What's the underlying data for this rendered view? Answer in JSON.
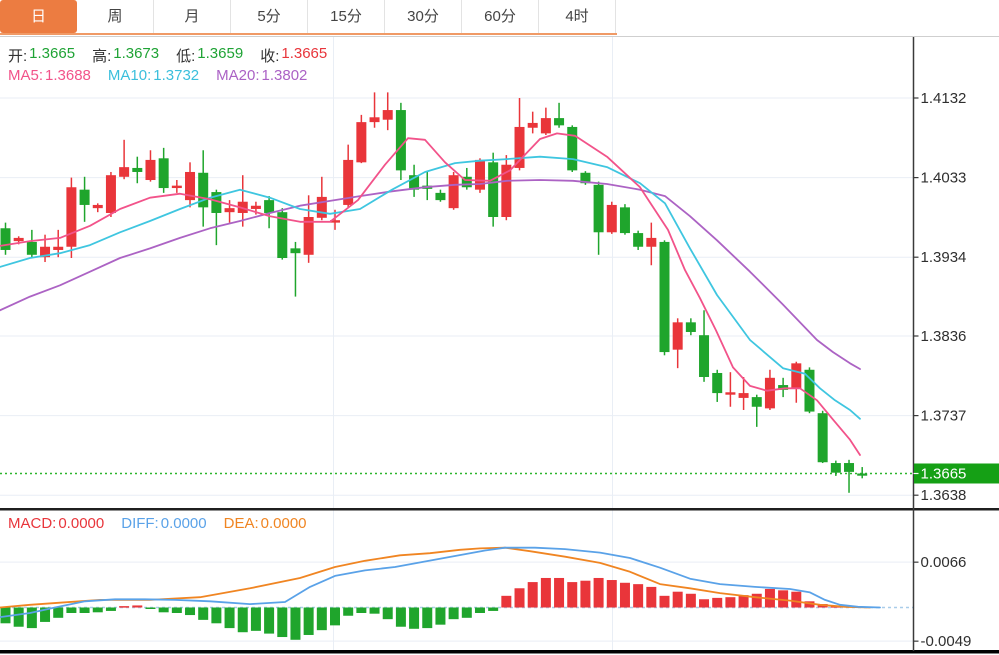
{
  "tabs": {
    "items": [
      {
        "label": "日",
        "active": true
      },
      {
        "label": "周",
        "active": false
      },
      {
        "label": "月",
        "active": false
      },
      {
        "label": "5分",
        "active": false
      },
      {
        "label": "15分",
        "active": false
      },
      {
        "label": "30分",
        "active": false
      },
      {
        "label": "60分",
        "active": false
      },
      {
        "label": "4时",
        "active": false
      }
    ]
  },
  "ohlc_row": {
    "items": [
      {
        "label": "开:",
        "value": "1.3665",
        "color": "green"
      },
      {
        "label": "高:",
        "value": "1.3673",
        "color": "green"
      },
      {
        "label": "低:",
        "value": "1.3659",
        "color": "green"
      },
      {
        "label": "收:",
        "value": "1.3665",
        "color": "red"
      }
    ]
  },
  "ma_row": {
    "items": [
      {
        "label": "MA5:",
        "value": "1.3688",
        "color": "ma5"
      },
      {
        "label": "MA10:",
        "value": "1.3732",
        "color": "ma10"
      },
      {
        "label": "MA20:",
        "value": "1.3802",
        "color": "ma20"
      }
    ]
  },
  "macd_row": {
    "items": [
      {
        "label": "MACD:",
        "value": "0.0000",
        "color": "red"
      },
      {
        "label": "DIFF:",
        "value": "0.0000",
        "color": "diff"
      },
      {
        "label": "DEA:",
        "value": "0.0000",
        "color": "dea"
      }
    ]
  },
  "colors": {
    "up": "#e9353a",
    "down": "#1fa52c",
    "ma5": "#f2538a",
    "ma10": "#3fc6e0",
    "ma20": "#ac63c4",
    "diff": "#5aa2e8",
    "dea": "#f08522",
    "tab_accent": "#ec7c41",
    "current_price_box": "#15a015",
    "grid": "#e9eef5",
    "axis": "#3a3a3a",
    "zero_dash": "#a9cde9",
    "current_price_line": "#2cb52c"
  },
  "chart_data": {
    "type": "candlestick+macd",
    "title": "",
    "price_axis": {
      "tick_labels": [
        "1.4132",
        "1.4033",
        "1.3934",
        "1.3836",
        "1.3737",
        "1.3638"
      ],
      "ticks": [
        1.4132,
        1.4033,
        1.3934,
        1.3836,
        1.3737,
        1.3638
      ],
      "current_label": "1.3665",
      "current_price": 1.3665
    },
    "macd_axis": {
      "tick_labels": [
        "0.0066",
        "-0.0049"
      ],
      "ticks": [
        0.0066,
        -0.0049
      ]
    },
    "candles": [
      [
        1.397,
        1.3977,
        1.3937,
        1.3943
      ],
      [
        1.3954,
        1.396,
        1.395,
        1.3958
      ],
      [
        1.3953,
        1.3968,
        1.3933,
        1.3937
      ],
      [
        1.3934,
        1.3962,
        1.3928,
        1.3947
      ],
      [
        1.3943,
        1.3968,
        1.3934,
        1.3947
      ],
      [
        1.3947,
        1.4033,
        1.3933,
        1.4021
      ],
      [
        1.4018,
        1.4034,
        1.3978,
        1.3999
      ],
      [
        1.3995,
        1.4001,
        1.399,
        1.3999
      ],
      [
        1.3989,
        1.404,
        1.3984,
        1.4036
      ],
      [
        1.4034,
        1.408,
        1.4031,
        1.4046
      ],
      [
        1.4045,
        1.4059,
        1.4026,
        1.404
      ],
      [
        1.403,
        1.4067,
        1.4028,
        1.4055
      ],
      [
        1.4057,
        1.407,
        1.4014,
        1.402
      ],
      [
        1.402,
        1.403,
        1.4014,
        1.4023
      ],
      [
        1.4005,
        1.4052,
        1.3996,
        1.404
      ],
      [
        1.4039,
        1.4067,
        1.3972,
        1.3996
      ],
      [
        1.4015,
        1.4018,
        1.3949,
        1.3989
      ],
      [
        1.399,
        1.4005,
        1.3977,
        1.3995
      ],
      [
        1.3989,
        1.4036,
        1.3972,
        1.4003
      ],
      [
        1.3994,
        1.4003,
        1.3987,
        1.3998
      ],
      [
        1.4005,
        1.401,
        1.397,
        1.3989
      ],
      [
        1.399,
        1.3995,
        1.3931,
        1.3933
      ],
      [
        1.3945,
        1.3953,
        1.3885,
        1.3939
      ],
      [
        1.3937,
        1.4011,
        1.3927,
        1.3984
      ],
      [
        1.3983,
        1.4034,
        1.398,
        1.4009
      ],
      [
        1.3977,
        1.3993,
        1.3968,
        1.398
      ],
      [
        1.3999,
        1.4074,
        1.3996,
        1.4055
      ],
      [
        1.4052,
        1.4111,
        1.4051,
        1.4102
      ],
      [
        1.4102,
        1.4139,
        1.4095,
        1.4108
      ],
      [
        1.4105,
        1.4139,
        1.4092,
        1.4117
      ],
      [
        1.4117,
        1.4126,
        1.403,
        1.4042
      ],
      [
        1.4036,
        1.4049,
        1.4009,
        1.4018
      ],
      [
        1.4023,
        1.404,
        1.4005,
        1.4019
      ],
      [
        1.4014,
        1.4018,
        1.4003,
        1.4005
      ],
      [
        1.3995,
        1.404,
        1.3993,
        1.4036
      ],
      [
        1.4034,
        1.4045,
        1.4018,
        1.4021
      ],
      [
        1.4018,
        1.4057,
        1.4014,
        1.4055
      ],
      [
        1.4052,
        1.4064,
        1.3972,
        1.3984
      ],
      [
        1.3984,
        1.4061,
        1.398,
        1.4049
      ],
      [
        1.4045,
        1.4132,
        1.4042,
        1.4096
      ],
      [
        1.4095,
        1.4115,
        1.4088,
        1.4101
      ],
      [
        1.4088,
        1.412,
        1.4086,
        1.4107
      ],
      [
        1.4107,
        1.4126,
        1.4095,
        1.4098
      ],
      [
        1.4096,
        1.4098,
        1.404,
        1.4042
      ],
      [
        1.4039,
        1.4041,
        1.4024,
        1.4026
      ],
      [
        1.4024,
        1.4028,
        1.3937,
        1.3965
      ],
      [
        1.3965,
        1.4003,
        1.3963,
        1.3999
      ],
      [
        1.3996,
        1.4,
        1.3962,
        1.3964
      ],
      [
        1.3964,
        1.3967,
        1.3943,
        1.3947
      ],
      [
        1.3947,
        1.3977,
        1.3924,
        1.3958
      ],
      [
        1.3953,
        1.3955,
        1.3812,
        1.3816
      ],
      [
        1.3819,
        1.3858,
        1.3796,
        1.3853
      ],
      [
        1.3853,
        1.3858,
        1.3837,
        1.3841
      ],
      [
        1.3837,
        1.3868,
        1.3779,
        1.3785
      ],
      [
        1.379,
        1.3794,
        1.3754,
        1.3765
      ],
      [
        1.3763,
        1.3791,
        1.3748,
        1.3766
      ],
      [
        1.3759,
        1.3785,
        1.3744,
        1.3765
      ],
      [
        1.376,
        1.3763,
        1.3723,
        1.3748
      ],
      [
        1.3746,
        1.3794,
        1.3744,
        1.3784
      ],
      [
        1.3775,
        1.3784,
        1.376,
        1.3769
      ],
      [
        1.3771,
        1.3804,
        1.3753,
        1.3802
      ],
      [
        1.3794,
        1.3797,
        1.374,
        1.3742
      ],
      [
        1.374,
        1.3743,
        1.3678,
        1.3679
      ],
      [
        1.3678,
        1.3681,
        1.3662,
        1.3666
      ],
      [
        1.3678,
        1.3682,
        1.3641,
        1.3667
      ],
      [
        1.3665,
        1.3673,
        1.3659,
        1.3665
      ]
    ],
    "ma5": [
      [
        0,
        1.3948
      ],
      [
        30,
        1.3954
      ],
      [
        60,
        1.3958
      ],
      [
        90,
        1.3973
      ],
      [
        120,
        1.3994
      ],
      [
        150,
        1.4008
      ],
      [
        180,
        1.4013
      ],
      [
        210,
        1.4006
      ],
      [
        240,
        1.3996
      ],
      [
        270,
        1.3985
      ],
      [
        300,
        1.3978
      ],
      [
        330,
        1.3978
      ],
      [
        358,
        1.4005
      ],
      [
        385,
        1.4049
      ],
      [
        408,
        1.4082
      ],
      [
        425,
        1.408
      ],
      [
        445,
        1.4052
      ],
      [
        465,
        1.403
      ],
      [
        490,
        1.4029
      ],
      [
        510,
        1.4042
      ],
      [
        540,
        1.4081
      ],
      [
        557,
        1.4088
      ],
      [
        575,
        1.4085
      ],
      [
        607,
        1.4059
      ],
      [
        640,
        1.4021
      ],
      [
        668,
        1.3968
      ],
      [
        685,
        1.3918
      ],
      [
        700,
        1.3883
      ],
      [
        716,
        1.3843
      ],
      [
        733,
        1.3797
      ],
      [
        750,
        1.3774
      ],
      [
        767,
        1.3768
      ],
      [
        785,
        1.3771
      ],
      [
        800,
        1.3771
      ],
      [
        817,
        1.3756
      ],
      [
        833,
        1.3732
      ],
      [
        850,
        1.3707
      ],
      [
        860,
        1.3688
      ]
    ],
    "ma10": [
      [
        0,
        1.3922
      ],
      [
        30,
        1.3933
      ],
      [
        60,
        1.3939
      ],
      [
        90,
        1.3949
      ],
      [
        120,
        1.3965
      ],
      [
        150,
        1.3979
      ],
      [
        180,
        1.3994
      ],
      [
        210,
        1.4008
      ],
      [
        240,
        1.4018
      ],
      [
        270,
        1.4008
      ],
      [
        300,
        1.3994
      ],
      [
        330,
        1.3988
      ],
      [
        360,
        1.3994
      ],
      [
        392,
        1.4018
      ],
      [
        425,
        1.404
      ],
      [
        455,
        1.4051
      ],
      [
        480,
        1.4054
      ],
      [
        507,
        1.4056
      ],
      [
        540,
        1.4059
      ],
      [
        573,
        1.4056
      ],
      [
        607,
        1.4046
      ],
      [
        640,
        1.4026
      ],
      [
        665,
        1.4001
      ],
      [
        690,
        1.3945
      ],
      [
        717,
        1.3887
      ],
      [
        750,
        1.3831
      ],
      [
        783,
        1.3796
      ],
      [
        805,
        1.3789
      ],
      [
        820,
        1.3771
      ],
      [
        835,
        1.3756
      ],
      [
        850,
        1.3744
      ],
      [
        860,
        1.3733
      ]
    ],
    "ma20": [
      [
        0,
        1.3868
      ],
      [
        30,
        1.3885
      ],
      [
        60,
        1.3899
      ],
      [
        90,
        1.3916
      ],
      [
        120,
        1.3933
      ],
      [
        150,
        1.3945
      ],
      [
        180,
        1.3958
      ],
      [
        210,
        1.397
      ],
      [
        240,
        1.3979
      ],
      [
        270,
        1.3989
      ],
      [
        300,
        1.3998
      ],
      [
        330,
        1.4004
      ],
      [
        360,
        1.401
      ],
      [
        392,
        1.4016
      ],
      [
        425,
        1.4021
      ],
      [
        455,
        1.4024
      ],
      [
        480,
        1.4025
      ],
      [
        507,
        1.4029
      ],
      [
        540,
        1.403
      ],
      [
        573,
        1.4029
      ],
      [
        607,
        1.4025
      ],
      [
        640,
        1.4018
      ],
      [
        665,
        1.401
      ],
      [
        690,
        1.3985
      ],
      [
        717,
        1.3955
      ],
      [
        750,
        1.3916
      ],
      [
        783,
        1.3875
      ],
      [
        817,
        1.3831
      ],
      [
        833,
        1.3816
      ],
      [
        850,
        1.3802
      ],
      [
        860,
        1.3795
      ]
    ],
    "macd": {
      "hist": [
        -0.0023,
        -0.0028,
        -0.003,
        -0.0021,
        -0.0015,
        -0.0008,
        -0.0008,
        -0.0007,
        -0.0005,
        0.0002,
        0.0003,
        -0.0002,
        -0.0007,
        -0.0008,
        -0.0011,
        -0.0018,
        -0.0023,
        -0.003,
        -0.0036,
        -0.0034,
        -0.0038,
        -0.0043,
        -0.0047,
        -0.004,
        -0.0033,
        -0.0026,
        -0.0012,
        -0.0008,
        -0.0009,
        -0.0017,
        -0.0028,
        -0.0031,
        -0.003,
        -0.0025,
        -0.0017,
        -0.0015,
        -0.0008,
        -0.0005,
        0.0017,
        0.0028,
        0.0037,
        0.0043,
        0.0043,
        0.0037,
        0.0039,
        0.0043,
        0.004,
        0.0036,
        0.0034,
        0.003,
        0.0017,
        0.0023,
        0.002,
        0.0012,
        0.0014,
        0.0015,
        0.0018,
        0.002,
        0.0027,
        0.0025,
        0.0023,
        0.0009,
        0.0005,
        0.0002,
        0.0,
        0.0
      ],
      "diff": [
        [
          0,
          -0.0014
        ],
        [
          30,
          -0.0008
        ],
        [
          55,
          0.0
        ],
        [
          85,
          0.0009
        ],
        [
          115,
          0.0012
        ],
        [
          145,
          0.0012
        ],
        [
          175,
          0.0011
        ],
        [
          210,
          0.0009
        ],
        [
          250,
          0.0005
        ],
        [
          285,
          0.0008
        ],
        [
          310,
          0.003
        ],
        [
          335,
          0.0046
        ],
        [
          365,
          0.0054
        ],
        [
          395,
          0.0059
        ],
        [
          425,
          0.0067
        ],
        [
          455,
          0.0075
        ],
        [
          485,
          0.0083
        ],
        [
          505,
          0.0087
        ],
        [
          535,
          0.0087
        ],
        [
          565,
          0.0085
        ],
        [
          600,
          0.008
        ],
        [
          630,
          0.0072
        ],
        [
          660,
          0.0058
        ],
        [
          690,
          0.0042
        ],
        [
          720,
          0.0034
        ],
        [
          755,
          0.003
        ],
        [
          790,
          0.0027
        ],
        [
          810,
          0.0022
        ],
        [
          825,
          0.0011
        ],
        [
          840,
          0.0004
        ],
        [
          858,
          0.0001
        ],
        [
          880,
          0.0
        ]
      ],
      "dea": [
        [
          0,
          0.0
        ],
        [
          30,
          0.0004
        ],
        [
          60,
          0.0007
        ],
        [
          100,
          0.0011
        ],
        [
          150,
          0.0011
        ],
        [
          200,
          0.0015
        ],
        [
          250,
          0.0028
        ],
        [
          300,
          0.0043
        ],
        [
          335,
          0.0059
        ],
        [
          365,
          0.0068
        ],
        [
          400,
          0.0076
        ],
        [
          430,
          0.0079
        ],
        [
          460,
          0.0084
        ],
        [
          480,
          0.0086
        ],
        [
          505,
          0.0087
        ],
        [
          530,
          0.0082
        ],
        [
          565,
          0.0074
        ],
        [
          600,
          0.0065
        ],
        [
          630,
          0.0052
        ],
        [
          660,
          0.0034
        ],
        [
          690,
          0.0028
        ],
        [
          720,
          0.0021
        ],
        [
          755,
          0.0015
        ],
        [
          790,
          0.001
        ],
        [
          820,
          0.0004
        ],
        [
          845,
          0.0001
        ],
        [
          870,
          0.0
        ]
      ]
    }
  }
}
